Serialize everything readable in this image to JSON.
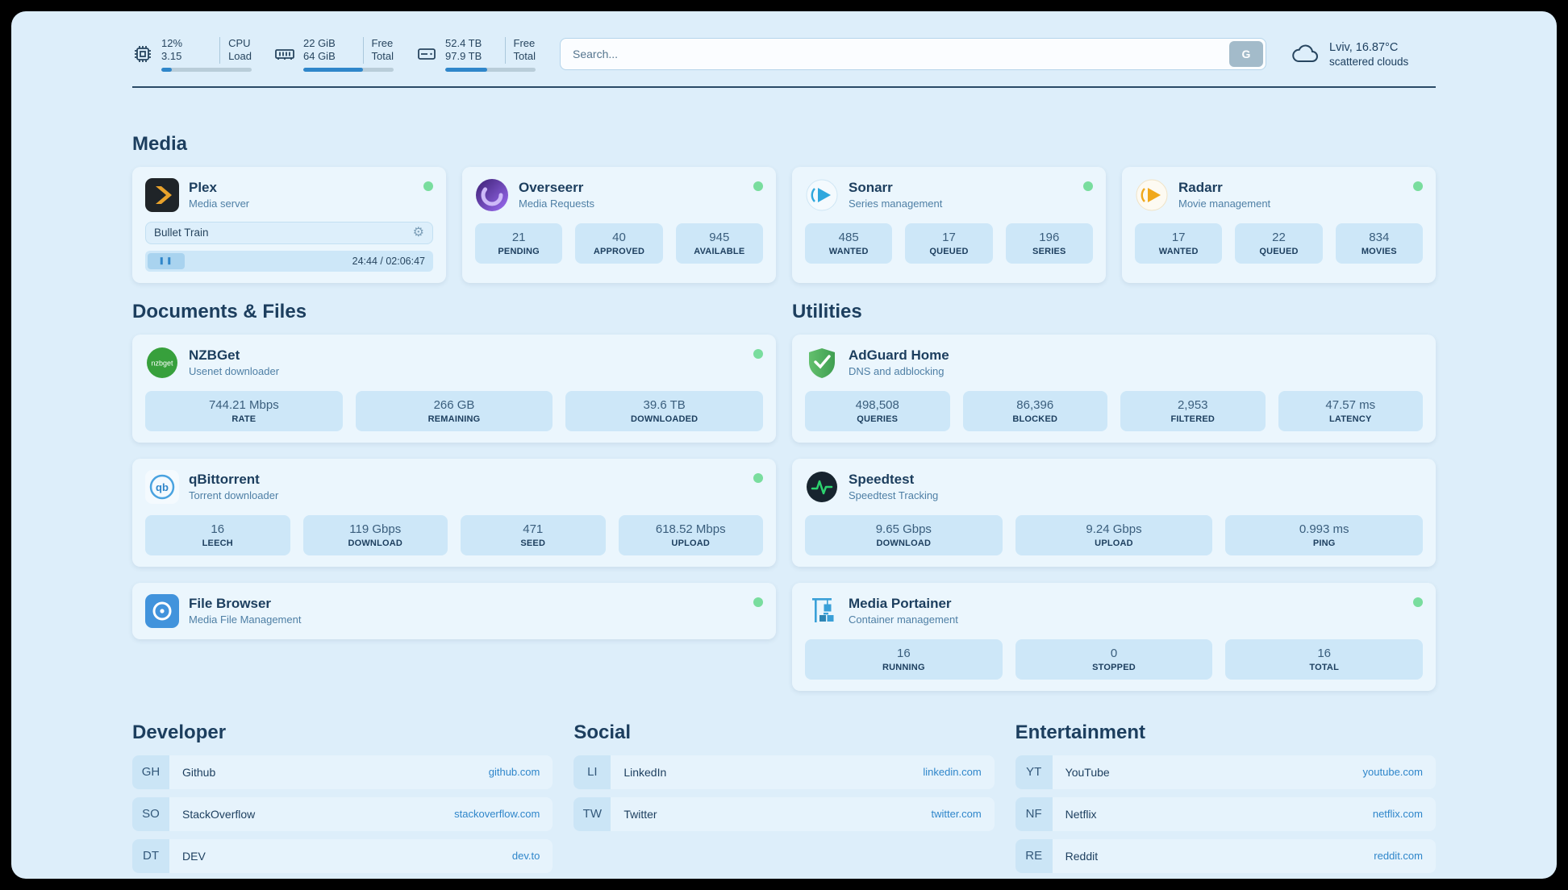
{
  "icons": {
    "gear": "⚙",
    "pause": "❚❚"
  },
  "header": {
    "cpu": {
      "percent": "12%",
      "load": "3.15",
      "label_top": "CPU",
      "label_bottom": "Load",
      "bar": 12
    },
    "memory": {
      "free": "22 GiB",
      "total": "64 GiB",
      "label_top": "Free",
      "label_bottom": "Total",
      "bar": 66
    },
    "storage": {
      "free": "52.4 TB",
      "total": "97.9 TB",
      "label_top": "Free",
      "label_bottom": "Total",
      "bar": 46
    },
    "search": {
      "placeholder": "Search...",
      "provider": "G"
    },
    "weather": {
      "location": "Lviv, 16.87°C",
      "description": "scattered clouds"
    }
  },
  "media": {
    "title": "Media",
    "plex": {
      "name": "Plex",
      "description": "Media server",
      "now_playing": "Bullet Train",
      "time": "24:44 / 02:06:47"
    },
    "overseerr": {
      "name": "Overseerr",
      "description": "Media Requests",
      "stats": [
        {
          "value": "21",
          "label": "PENDING"
        },
        {
          "value": "40",
          "label": "APPROVED"
        },
        {
          "value": "945",
          "label": "AVAILABLE"
        }
      ]
    },
    "sonarr": {
      "name": "Sonarr",
      "description": "Series management",
      "stats": [
        {
          "value": "485",
          "label": "WANTED"
        },
        {
          "value": "17",
          "label": "QUEUED"
        },
        {
          "value": "196",
          "label": "SERIES"
        }
      ]
    },
    "radarr": {
      "name": "Radarr",
      "description": "Movie management",
      "stats": [
        {
          "value": "17",
          "label": "WANTED"
        },
        {
          "value": "22",
          "label": "QUEUED"
        },
        {
          "value": "834",
          "label": "MOVIES"
        }
      ]
    }
  },
  "documents": {
    "title": "Documents & Files",
    "nzbget": {
      "name": "NZBGet",
      "description": "Usenet downloader",
      "stats": [
        {
          "value": "744.21 Mbps",
          "label": "RATE"
        },
        {
          "value": "266 GB",
          "label": "REMAINING"
        },
        {
          "value": "39.6 TB",
          "label": "DOWNLOADED"
        }
      ]
    },
    "qbittorrent": {
      "name": "qBittorrent",
      "description": "Torrent downloader",
      "stats": [
        {
          "value": "16",
          "label": "LEECH"
        },
        {
          "value": "119 Gbps",
          "label": "DOWNLOAD"
        },
        {
          "value": "471",
          "label": "SEED"
        },
        {
          "value": "618.52 Mbps",
          "label": "UPLOAD"
        }
      ]
    },
    "filebrowser": {
      "name": "File Browser",
      "description": "Media File Management"
    }
  },
  "utilities": {
    "title": "Utilities",
    "adguard": {
      "name": "AdGuard Home",
      "description": "DNS and adblocking",
      "stats": [
        {
          "value": "498,508",
          "label": "QUERIES"
        },
        {
          "value": "86,396",
          "label": "BLOCKED"
        },
        {
          "value": "2,953",
          "label": "FILTERED"
        },
        {
          "value": "47.57 ms",
          "label": "LATENCY"
        }
      ]
    },
    "speedtest": {
      "name": "Speedtest",
      "description": "Speedtest Tracking",
      "stats": [
        {
          "value": "9.65 Gbps",
          "label": "DOWNLOAD"
        },
        {
          "value": "9.24 Gbps",
          "label": "UPLOAD"
        },
        {
          "value": "0.993 ms",
          "label": "PING"
        }
      ]
    },
    "portainer": {
      "name": "Media Portainer",
      "description": "Container management",
      "stats": [
        {
          "value": "16",
          "label": "RUNNING"
        },
        {
          "value": "0",
          "label": "STOPPED"
        },
        {
          "value": "16",
          "label": "TOTAL"
        }
      ]
    }
  },
  "bookmarks": {
    "developer": {
      "title": "Developer",
      "links": [
        {
          "abbr": "GH",
          "name": "Github",
          "url": "github.com"
        },
        {
          "abbr": "SO",
          "name": "StackOverflow",
          "url": "stackoverflow.com"
        },
        {
          "abbr": "DT",
          "name": "DEV",
          "url": "dev.to"
        }
      ]
    },
    "social": {
      "title": "Social",
      "links": [
        {
          "abbr": "LI",
          "name": "LinkedIn",
          "url": "linkedin.com"
        },
        {
          "abbr": "TW",
          "name": "Twitter",
          "url": "twitter.com"
        }
      ]
    },
    "entertainment": {
      "title": "Entertainment",
      "links": [
        {
          "abbr": "YT",
          "name": "YouTube",
          "url": "youtube.com"
        },
        {
          "abbr": "NF",
          "name": "Netflix",
          "url": "netflix.com"
        },
        {
          "abbr": "RE",
          "name": "Reddit",
          "url": "reddit.com"
        }
      ]
    }
  }
}
